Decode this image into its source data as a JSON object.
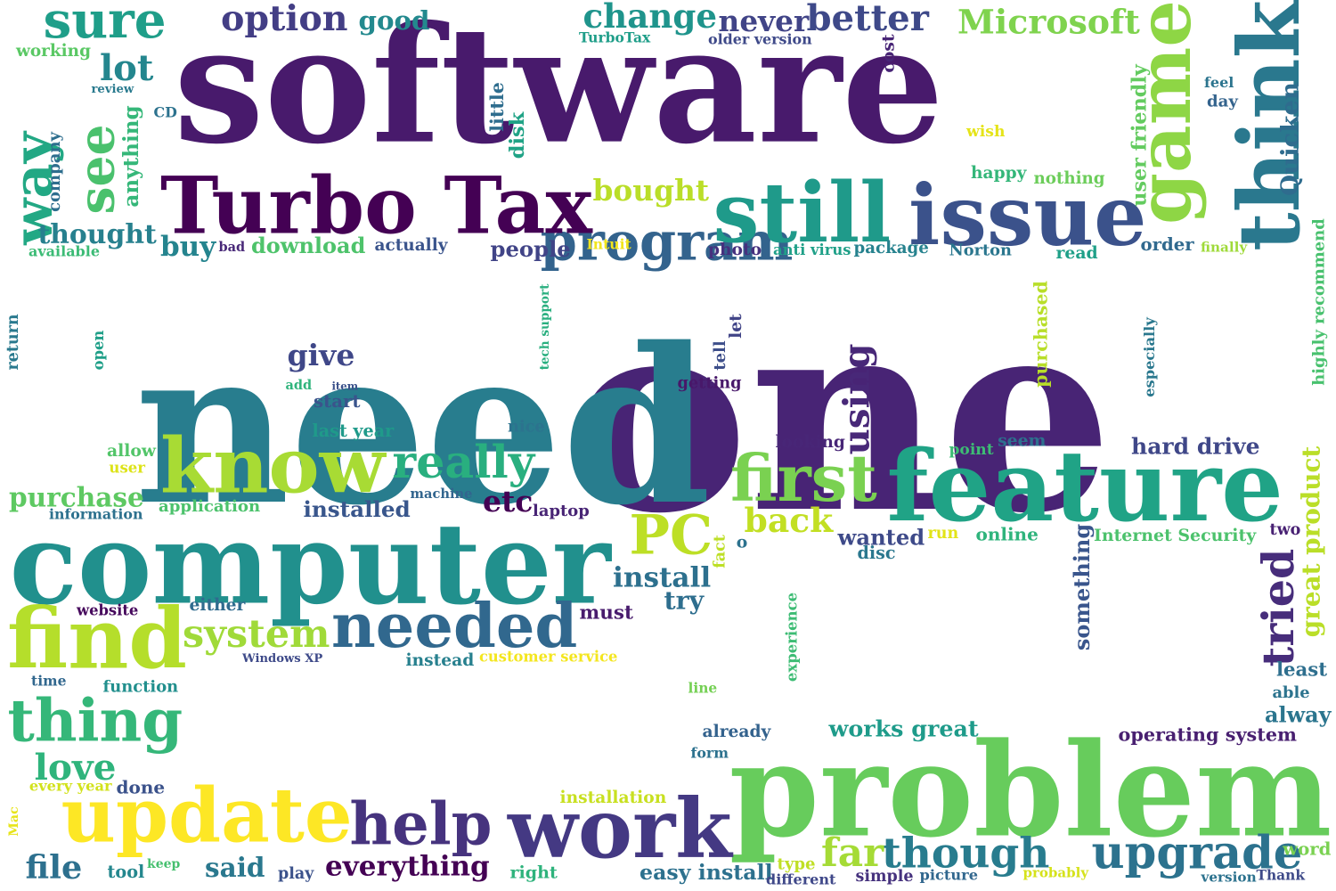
{
  "words": [
    {
      "text": "program",
      "color": "#33638d",
      "rotate": false
    },
    {
      "text": "software",
      "color": "#481a6c",
      "rotate": false
    },
    {
      "text": "one",
      "color": "#482475",
      "rotate": false
    },
    {
      "text": "need",
      "color": "#287d8e",
      "rotate": false
    },
    {
      "text": "problem",
      "color": "#67cc5c",
      "rotate": false
    },
    {
      "text": "computer",
      "color": "#21908d",
      "rotate": false
    },
    {
      "text": "Turbo Tax",
      "color": "#440154",
      "rotate": false
    },
    {
      "text": "feature",
      "color": "#20a386",
      "rotate": false
    },
    {
      "text": "update",
      "color": "#fde725",
      "rotate": false
    },
    {
      "text": "work",
      "color": "#443983",
      "rotate": false
    },
    {
      "text": "know",
      "color": "#a8db34",
      "rotate": false
    },
    {
      "text": "game",
      "color": "#8ed645",
      "rotate": true
    },
    {
      "text": "think",
      "color": "#2a788e",
      "rotate": true
    },
    {
      "text": "issue",
      "color": "#3b528b",
      "rotate": false
    },
    {
      "text": "still",
      "color": "#1f9a8a",
      "rotate": false
    },
    {
      "text": "find",
      "color": "#b5de2b",
      "rotate": false
    },
    {
      "text": "thing",
      "color": "#35b779",
      "rotate": false
    },
    {
      "text": "needed",
      "color": "#31688e",
      "rotate": false
    },
    {
      "text": "help",
      "color": "#46337e",
      "rotate": false
    },
    {
      "text": "first",
      "color": "#7ad151",
      "rotate": false
    },
    {
      "text": "sure",
      "color": "#1f9e89",
      "rotate": false
    },
    {
      "text": "way",
      "color": "#22a884",
      "rotate": true
    },
    {
      "text": "see",
      "color": "#4ac16d",
      "rotate": true
    },
    {
      "text": "PC",
      "color": "#bddf26",
      "rotate": false
    },
    {
      "text": "really",
      "color": "#29af7f",
      "rotate": false
    },
    {
      "text": "though",
      "color": "#287c8e",
      "rotate": false
    },
    {
      "text": "upgrade",
      "color": "#2c728e",
      "rotate": false
    },
    {
      "text": "Microsoft",
      "color": "#7fd34e",
      "rotate": false
    },
    {
      "text": "option",
      "color": "#433e85",
      "rotate": false
    },
    {
      "text": "better",
      "color": "#3e4989",
      "rotate": false
    },
    {
      "text": "change",
      "color": "#1f948c",
      "rotate": false
    },
    {
      "text": "tried",
      "color": "#472d7b",
      "rotate": true
    },
    {
      "text": "love",
      "color": "#2fb47c",
      "rotate": false
    },
    {
      "text": "system",
      "color": "#a0da39",
      "rotate": false
    },
    {
      "text": "install",
      "color": "#2d708e",
      "rotate": false
    },
    {
      "text": "everything",
      "color": "#440154",
      "rotate": false
    },
    {
      "text": "back",
      "color": "#c2df23",
      "rotate": false
    },
    {
      "text": "lot",
      "color": "#24868e",
      "rotate": false
    },
    {
      "text": "bought",
      "color": "#bade28",
      "rotate": false
    },
    {
      "text": "give",
      "color": "#3f4788",
      "rotate": false
    },
    {
      "text": "using",
      "color": "#482878",
      "rotate": true
    },
    {
      "text": "purchase",
      "color": "#5ec962",
      "rotate": false
    },
    {
      "text": "buy",
      "color": "#25848e",
      "rotate": false
    },
    {
      "text": "never",
      "color": "#414487",
      "rotate": false
    },
    {
      "text": "good",
      "color": "#23898e",
      "rotate": false
    },
    {
      "text": "etc",
      "color": "#440154",
      "rotate": false
    },
    {
      "text": "far",
      "color": "#a5db36",
      "rotate": false
    },
    {
      "text": "file",
      "color": "#2d708e",
      "rotate": false
    },
    {
      "text": "said",
      "color": "#2a788e",
      "rotate": false
    },
    {
      "text": "people",
      "color": "#414487",
      "rotate": false
    },
    {
      "text": "thought",
      "color": "#27808e",
      "rotate": false
    },
    {
      "text": "download",
      "color": "#4ec36b",
      "rotate": false
    },
    {
      "text": "great product",
      "color": "#bade28",
      "rotate": true
    },
    {
      "text": "works great",
      "color": "#1e9b8a",
      "rotate": false
    },
    {
      "text": "easy install",
      "color": "#2d718e",
      "rotate": false
    },
    {
      "text": "hard drive",
      "color": "#3f4788",
      "rotate": false
    },
    {
      "text": "installed",
      "color": "#39568c",
      "rotate": false
    },
    {
      "text": "wanted",
      "color": "#3e4a89",
      "rotate": false
    },
    {
      "text": "try",
      "color": "#2e6e8e",
      "rotate": false
    },
    {
      "text": "something",
      "color": "#39558c",
      "rotate": true
    },
    {
      "text": "purchased",
      "color": "#b8de29",
      "rotate": true
    },
    {
      "text": "operating system",
      "color": "#481f70",
      "rotate": false
    },
    {
      "text": "must",
      "color": "#481b6d",
      "rotate": false
    },
    {
      "text": "alway",
      "color": "#2b758e",
      "rotate": false
    },
    {
      "text": "order",
      "color": "#30698e",
      "rotate": false
    },
    {
      "text": "working",
      "color": "#5ac864",
      "rotate": false
    },
    {
      "text": "review",
      "color": "#297a8e",
      "rotate": false
    },
    {
      "text": "CD",
      "color": "#2c728e",
      "rotate": false
    },
    {
      "text": "anything",
      "color": "#35b779",
      "rotate": true
    },
    {
      "text": "company",
      "color": "#2e6e8e",
      "rotate": true
    },
    {
      "text": "available",
      "color": "#3bbb75",
      "rotate": false
    },
    {
      "text": "bad",
      "color": "#482878",
      "rotate": false
    },
    {
      "text": "actually",
      "color": "#3a548c",
      "rotate": false
    },
    {
      "text": "Intuit",
      "color": "#f1e51d",
      "rotate": false
    },
    {
      "text": "photo",
      "color": "#46307e",
      "rotate": false
    },
    {
      "text": "anti virus",
      "color": "#1fa088",
      "rotate": false
    },
    {
      "text": "package",
      "color": "#26828e",
      "rotate": false
    },
    {
      "text": "Norton",
      "color": "#2a768e",
      "rotate": false
    },
    {
      "text": "read",
      "color": "#1fa088",
      "rotate": false
    },
    {
      "text": "finally",
      "color": "#9fda3a",
      "rotate": false
    },
    {
      "text": "TurboTax",
      "color": "#1f9e89",
      "rotate": false
    },
    {
      "text": "older version",
      "color": "#3e4989",
      "rotate": false
    },
    {
      "text": "cost",
      "color": "#482576",
      "rotate": true
    },
    {
      "text": "little",
      "color": "#2e6d8e",
      "rotate": true
    },
    {
      "text": "disk",
      "color": "#20a386",
      "rotate": true
    },
    {
      "text": "wish",
      "color": "#e5e419",
      "rotate": false
    },
    {
      "text": "happy",
      "color": "#34b679",
      "rotate": false
    },
    {
      "text": "nothing",
      "color": "#6ccd5a",
      "rotate": false
    },
    {
      "text": "user friendly",
      "color": "#63cb5f",
      "rotate": true
    },
    {
      "text": "Quicken",
      "color": "#2f6c8e",
      "rotate": true
    },
    {
      "text": "feel",
      "color": "#2b748e",
      "rotate": false
    },
    {
      "text": "day",
      "color": "#33638d",
      "rotate": false
    },
    {
      "text": "highly recommend",
      "color": "#48c16e",
      "rotate": true
    },
    {
      "text": "especially",
      "color": "#2a788e",
      "rotate": true
    },
    {
      "text": "return",
      "color": "#29798e",
      "rotate": true
    },
    {
      "text": "open",
      "color": "#1f9f88",
      "rotate": true
    },
    {
      "text": "tech support",
      "color": "#29af7f",
      "rotate": true
    },
    {
      "text": "let",
      "color": "#414487",
      "rotate": true
    },
    {
      "text": "tell",
      "color": "#3d4e8a",
      "rotate": true
    },
    {
      "text": "add",
      "color": "#2fb47c",
      "rotate": false
    },
    {
      "text": "item",
      "color": "#3b518b",
      "rotate": false
    },
    {
      "text": "start",
      "color": "#3a548c",
      "rotate": false
    },
    {
      "text": "getting",
      "color": "#48186a",
      "rotate": false
    },
    {
      "text": "last year",
      "color": "#1f9a8a",
      "rotate": false
    },
    {
      "text": "nice",
      "color": "#2c738e",
      "rotate": false
    },
    {
      "text": "looking",
      "color": "#482677",
      "rotate": false
    },
    {
      "text": "point",
      "color": "#3dbc74",
      "rotate": false
    },
    {
      "text": "seem",
      "color": "#2d708e",
      "rotate": false
    },
    {
      "text": "allow",
      "color": "#52c569",
      "rotate": false
    },
    {
      "text": "user",
      "color": "#dde318",
      "rotate": false
    },
    {
      "text": "machine",
      "color": "#32658e",
      "rotate": false
    },
    {
      "text": "information",
      "color": "#2d718e",
      "rotate": false
    },
    {
      "text": "application",
      "color": "#4cc26c",
      "rotate": false
    },
    {
      "text": "laptop",
      "color": "#482475",
      "rotate": false
    },
    {
      "text": "run",
      "color": "#e2e418",
      "rotate": false
    },
    {
      "text": "online",
      "color": "#2fb47c",
      "rotate": false
    },
    {
      "text": "Internet Security",
      "color": "#4cc26c",
      "rotate": false
    },
    {
      "text": "two",
      "color": "#482173",
      "rotate": false
    },
    {
      "text": "fact",
      "color": "#bddf26",
      "rotate": true
    },
    {
      "text": "o",
      "color": "#2c728e",
      "rotate": false
    },
    {
      "text": "disc",
      "color": "#2a778e",
      "rotate": false
    },
    {
      "text": "website",
      "color": "#46085c",
      "rotate": false
    },
    {
      "text": "either",
      "color": "#2f6b8e",
      "rotate": false
    },
    {
      "text": "Windows XP",
      "color": "#3e4a89",
      "rotate": false
    },
    {
      "text": "instead",
      "color": "#27808e",
      "rotate": false
    },
    {
      "text": "customer service",
      "color": "#f4e61e",
      "rotate": false
    },
    {
      "text": "experience",
      "color": "#3dbc74",
      "rotate": true
    },
    {
      "text": "least",
      "color": "#2e6f8e",
      "rotate": false
    },
    {
      "text": "able",
      "color": "#2c738e",
      "rotate": false
    },
    {
      "text": "time",
      "color": "#31678e",
      "rotate": false
    },
    {
      "text": "function",
      "color": "#218f8d",
      "rotate": false
    },
    {
      "text": "line",
      "color": "#75d054",
      "rotate": false
    },
    {
      "text": "already",
      "color": "#33628d",
      "rotate": false
    },
    {
      "text": "form",
      "color": "#2c718e",
      "rotate": false
    },
    {
      "text": "every year",
      "color": "#d2e21b",
      "rotate": false
    },
    {
      "text": "done",
      "color": "#3b528b",
      "rotate": false
    },
    {
      "text": "installation",
      "color": "#c8e020",
      "rotate": false
    },
    {
      "text": "Mac",
      "color": "#e7e419",
      "rotate": true
    },
    {
      "text": "tool",
      "color": "#24878e",
      "rotate": false
    },
    {
      "text": "keep",
      "color": "#46c06f",
      "rotate": false
    },
    {
      "text": "play",
      "color": "#3b528b",
      "rotate": false
    },
    {
      "text": "right",
      "color": "#2eb37c",
      "rotate": false
    },
    {
      "text": "type",
      "color": "#c0df25",
      "rotate": false
    },
    {
      "text": "different",
      "color": "#3f4889",
      "rotate": false
    },
    {
      "text": "simple",
      "color": "#46327e",
      "rotate": false
    },
    {
      "text": "picture",
      "color": "#31678e",
      "rotate": false
    },
    {
      "text": "probably",
      "color": "#d5e21a",
      "rotate": false
    },
    {
      "text": "version",
      "color": "#2c728e",
      "rotate": false
    },
    {
      "text": "Thank",
      "color": "#3e4a89",
      "rotate": false
    },
    {
      "text": "word",
      "color": "#7ad151",
      "rotate": false
    }
  ]
}
